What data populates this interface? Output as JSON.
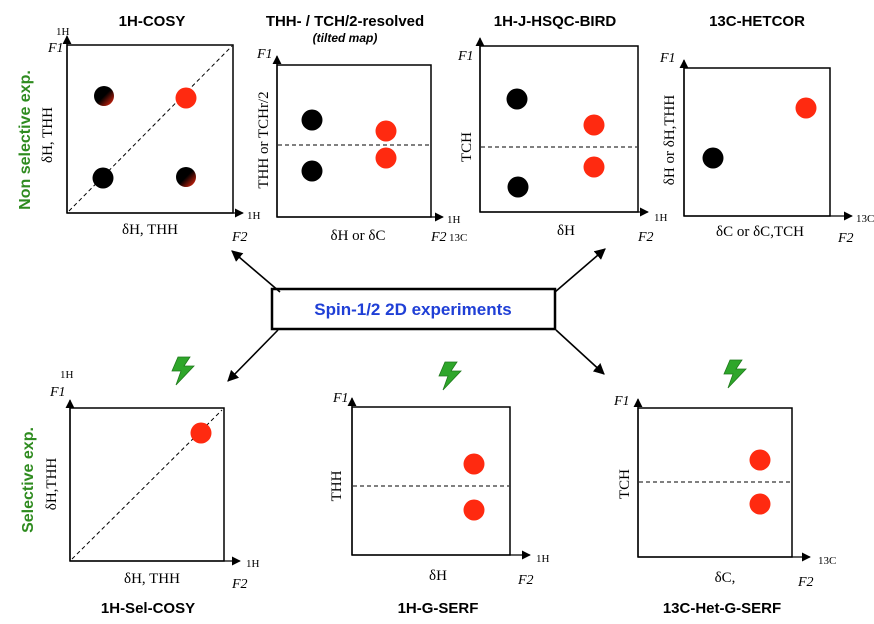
{
  "side_labels": {
    "non_selective": "Non selective exp.",
    "selective": "Selective exp."
  },
  "center_label": "Spin-1/2 2D experiments",
  "panels": {
    "cosy": {
      "title": "1H-COSY",
      "f1": "F1",
      "f2": "F2",
      "axis_v_nucleus": "1H",
      "axis_h_nucleus": "1H",
      "ylabel": "δH, THH",
      "xlabel": "δH, THH"
    },
    "resolved": {
      "title": "THH- / TCH/2-resolved",
      "subtitle": "(tilted map)",
      "f1": "F1",
      "f2": "F2",
      "axis_h_nucleus": "1H",
      "axis_h_nucleus2": "13C",
      "ylabel": "THH or TCHr/2",
      "xlabel": "δH or δC"
    },
    "hsqc": {
      "title": "1H-J-HSQC-BIRD",
      "f1": "F1",
      "f2": "F2",
      "axis_h_nucleus": "1H",
      "ylabel": "TCH",
      "xlabel": "δH"
    },
    "hetcor": {
      "title": "13C-HETCOR",
      "f1": "F1",
      "f2": "F2",
      "axis_h_nucleus": "13C",
      "ylabel": "δH or δH,THH",
      "xlabel": "δC or δC,TCH"
    },
    "selcosy": {
      "title": "1H-Sel-COSY",
      "f1": "F1",
      "f2": "F2",
      "axis_v_nucleus": "1H",
      "axis_h_nucleus": "1H",
      "ylabel": "δH,THH",
      "xlabel": "δH, THH"
    },
    "gserf": {
      "title": "1H-G-SERF",
      "f1": "F1",
      "f2": "F2",
      "axis_h_nucleus": "1H",
      "ylabel": "THH",
      "xlabel": "δH"
    },
    "hetgserf": {
      "title": "13C-Het-G-SERF",
      "f1": "F1",
      "f2": "F2",
      "axis_h_nucleus": "13C",
      "ylabel": "TCH",
      "xlabel": "δC,"
    }
  },
  "colors": {
    "red_peak": "#ff2a10",
    "black_peak": "#000000",
    "green_label": "#2e8b1f",
    "blue_label": "#1f3fd6",
    "lightning": "#2ea62a"
  },
  "icons": [
    "lightning-bolt-icon"
  ]
}
